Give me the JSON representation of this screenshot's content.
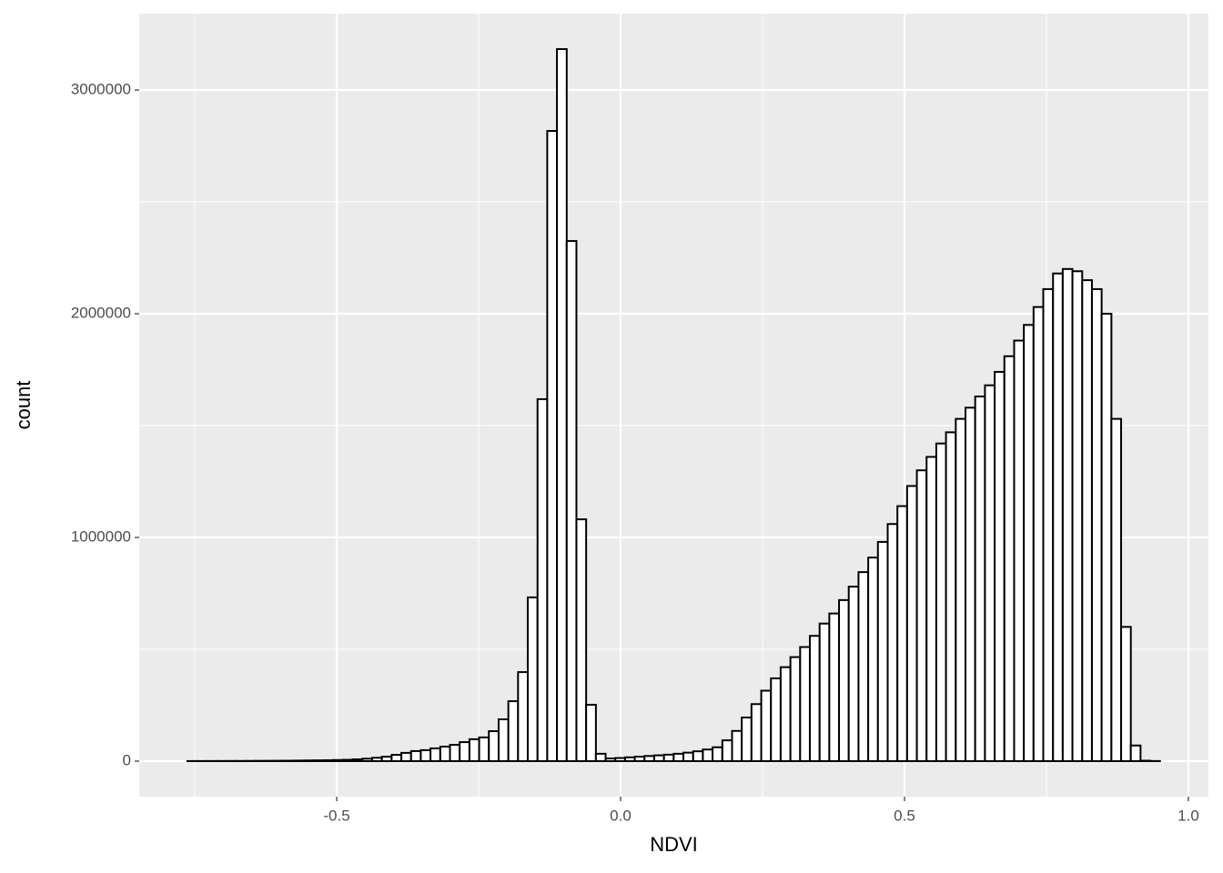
{
  "chart_data": {
    "type": "histogram",
    "x_label": "NDVI",
    "y_label": "count",
    "bins": [
      -0.763,
      -0.7459,
      -0.7287,
      -0.7116,
      -0.6945,
      -0.6774,
      -0.6602,
      -0.6431,
      -0.626,
      -0.6088,
      -0.5917,
      -0.5746,
      -0.5574,
      -0.5403,
      -0.5232,
      -0.5061,
      -0.4889,
      -0.4718,
      -0.4547,
      -0.4375,
      -0.4204,
      -0.4033,
      -0.3861,
      -0.369,
      -0.3519,
      -0.3348,
      -0.3176,
      -0.3005,
      -0.2834,
      -0.2662,
      -0.2491,
      -0.232,
      -0.2148,
      -0.1977,
      -0.1806,
      -0.1635,
      -0.1463,
      -0.1292,
      -0.1121,
      -0.0949,
      -0.0778,
      -0.0607,
      -0.0435,
      -0.0264,
      -0.0093,
      0.0079,
      0.025,
      0.0421,
      0.0592,
      0.0764,
      0.0935,
      0.1106,
      0.1278,
      0.1449,
      0.162,
      0.1792,
      0.1963,
      0.2134,
      0.2305,
      0.2477,
      0.2648,
      0.2819,
      0.2991,
      0.3162,
      0.3333,
      0.3505,
      0.3676,
      0.3847,
      0.4018,
      0.419,
      0.4361,
      0.4532,
      0.4704,
      0.4875,
      0.5046,
      0.5218,
      0.5389,
      0.556,
      0.5731,
      0.5903,
      0.6074,
      0.6245,
      0.6417,
      0.6588,
      0.6759,
      0.6931,
      0.7102,
      0.7273,
      0.7444,
      0.7616,
      0.7787,
      0.7958,
      0.813,
      0.8301,
      0.8472,
      0.8644,
      0.8815,
      0.8986,
      0.9157,
      0.9329,
      0.95
    ],
    "values": [
      400,
      500,
      600,
      700,
      800,
      900,
      1100,
      1300,
      1500,
      1800,
      2000,
      2500,
      3000,
      3500,
      4000,
      5000,
      6000,
      8000,
      11000,
      15000,
      20000,
      28000,
      37000,
      45000,
      49000,
      57000,
      65000,
      73000,
      85000,
      98000,
      106000,
      134000,
      187000,
      268000,
      398000,
      732000,
      1618000,
      2817000,
      3183000,
      2325000,
      1081000,
      252000,
      33000,
      12000,
      14000,
      17000,
      20000,
      23000,
      26000,
      29000,
      33000,
      38000,
      44000,
      52000,
      62000,
      93000,
      135000,
      195000,
      255000,
      315000,
      370000,
      420000,
      465000,
      510000,
      560000,
      615000,
      660000,
      720000,
      780000,
      845000,
      910000,
      980000,
      1060000,
      1140000,
      1230000,
      1300000,
      1360000,
      1420000,
      1470000,
      1530000,
      1580000,
      1630000,
      1680000,
      1740000,
      1810000,
      1880000,
      1950000,
      2030000,
      2110000,
      2180000,
      2200000,
      2190000,
      2150000,
      2110000,
      2000000,
      1530000,
      600000,
      70000,
      2000,
      500
    ],
    "fill": "#ffffff",
    "edge_color": "#000000",
    "background": "#ebebeb",
    "grid_color": "#ffffff",
    "grid": true,
    "xlim": [
      -0.8478,
      1.0353
    ],
    "ylim": [
      -158537,
      3341463
    ],
    "xticks": [
      -0.5,
      {
        "value": 0.0,
        "label": "0.0"
      },
      0.5,
      {
        "value": 1.0,
        "label": "1.0"
      }
    ],
    "yticks": [
      0,
      1000000,
      2000000,
      3000000
    ]
  }
}
